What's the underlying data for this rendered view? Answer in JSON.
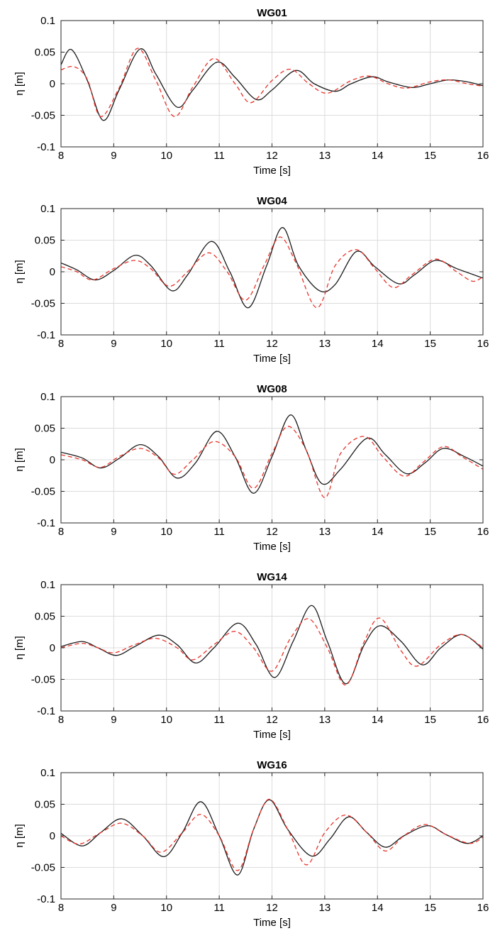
{
  "chart_data": [
    {
      "type": "line",
      "title": "WG01",
      "xlabel": "Time [s]",
      "ylabel": "η [m]",
      "xlim": [
        8,
        16
      ],
      "ylim": [
        -0.1,
        0.1
      ],
      "xticks": [
        "8",
        "9",
        "10",
        "11",
        "12",
        "13",
        "14",
        "15",
        "16"
      ],
      "yticks": [
        "-0.1",
        "-0.05",
        "0",
        "0.05",
        "0.1"
      ],
      "grid": true,
      "series": [
        {
          "style": "solid",
          "color": "#1a1a1a",
          "points": [
            [
              8.0,
              0.03
            ],
            [
              8.2,
              0.054
            ],
            [
              8.5,
              0.005
            ],
            [
              8.8,
              -0.058
            ],
            [
              9.1,
              -0.01
            ],
            [
              9.5,
              0.055
            ],
            [
              9.8,
              0.015
            ],
            [
              10.2,
              -0.037
            ],
            [
              10.5,
              -0.01
            ],
            [
              10.95,
              0.034
            ],
            [
              11.3,
              0.01
            ],
            [
              11.7,
              -0.025
            ],
            [
              12.0,
              -0.01
            ],
            [
              12.45,
              0.021
            ],
            [
              12.8,
              0.0
            ],
            [
              13.2,
              -0.012
            ],
            [
              13.5,
              0.0
            ],
            [
              13.9,
              0.011
            ],
            [
              14.2,
              0.003
            ],
            [
              14.65,
              -0.006
            ],
            [
              15.0,
              0.0
            ],
            [
              15.35,
              0.006
            ],
            [
              15.7,
              0.003
            ],
            [
              16.0,
              -0.003
            ]
          ]
        },
        {
          "style": "dashed",
          "color": "#e8332a",
          "points": [
            [
              8.0,
              0.022
            ],
            [
              8.25,
              0.027
            ],
            [
              8.5,
              0.007
            ],
            [
              8.75,
              -0.052
            ],
            [
              9.1,
              -0.007
            ],
            [
              9.45,
              0.056
            ],
            [
              9.8,
              0.005
            ],
            [
              10.15,
              -0.052
            ],
            [
              10.5,
              -0.005
            ],
            [
              10.9,
              0.04
            ],
            [
              11.3,
              0.0
            ],
            [
              11.6,
              -0.03
            ],
            [
              12.0,
              0.005
            ],
            [
              12.35,
              0.023
            ],
            [
              12.7,
              0.0
            ],
            [
              13.05,
              -0.015
            ],
            [
              13.5,
              0.005
            ],
            [
              13.85,
              0.012
            ],
            [
              14.2,
              0.0
            ],
            [
              14.55,
              -0.007
            ],
            [
              15.0,
              0.003
            ],
            [
              15.35,
              0.006
            ],
            [
              15.7,
              0.0
            ],
            [
              16.0,
              -0.004
            ]
          ]
        }
      ]
    },
    {
      "type": "line",
      "title": "WG04",
      "xlabel": "Time [s]",
      "ylabel": "η [m]",
      "xlim": [
        8,
        16
      ],
      "ylim": [
        -0.1,
        0.1
      ],
      "xticks": [
        "8",
        "9",
        "10",
        "11",
        "12",
        "13",
        "14",
        "15",
        "16"
      ],
      "yticks": [
        "-0.1",
        "-0.05",
        "0",
        "0.05",
        "0.1"
      ],
      "grid": true,
      "series": [
        {
          "style": "solid",
          "color": "#1a1a1a",
          "points": [
            [
              8.0,
              0.014
            ],
            [
              8.3,
              0.003
            ],
            [
              8.65,
              -0.013
            ],
            [
              9.0,
              0.002
            ],
            [
              9.4,
              0.026
            ],
            [
              9.7,
              0.01
            ],
            [
              10.1,
              -0.03
            ],
            [
              10.4,
              -0.005
            ],
            [
              10.85,
              0.048
            ],
            [
              11.2,
              0.0
            ],
            [
              11.55,
              -0.057
            ],
            [
              11.9,
              0.01
            ],
            [
              12.2,
              0.07
            ],
            [
              12.5,
              0.01
            ],
            [
              12.9,
              -0.03
            ],
            [
              13.2,
              -0.02
            ],
            [
              13.6,
              0.032
            ],
            [
              13.95,
              0.008
            ],
            [
              14.4,
              -0.019
            ],
            [
              14.7,
              -0.005
            ],
            [
              15.1,
              0.018
            ],
            [
              15.5,
              0.005
            ],
            [
              16.0,
              -0.01
            ]
          ]
        },
        {
          "style": "dashed",
          "color": "#e8332a",
          "points": [
            [
              8.0,
              0.008
            ],
            [
              8.3,
              0.0
            ],
            [
              8.6,
              -0.013
            ],
            [
              9.0,
              0.005
            ],
            [
              9.4,
              0.018
            ],
            [
              9.7,
              0.005
            ],
            [
              10.05,
              -0.023
            ],
            [
              10.4,
              0.0
            ],
            [
              10.8,
              0.03
            ],
            [
              11.15,
              0.0
            ],
            [
              11.5,
              -0.045
            ],
            [
              11.85,
              0.01
            ],
            [
              12.15,
              0.055
            ],
            [
              12.45,
              0.015
            ],
            [
              12.85,
              -0.057
            ],
            [
              13.2,
              0.01
            ],
            [
              13.6,
              0.035
            ],
            [
              13.95,
              0.005
            ],
            [
              14.3,
              -0.025
            ],
            [
              14.65,
              -0.005
            ],
            [
              15.1,
              0.02
            ],
            [
              15.5,
              0.0
            ],
            [
              15.8,
              -0.015
            ],
            [
              16.0,
              -0.008
            ]
          ]
        }
      ]
    },
    {
      "type": "line",
      "title": "WG08",
      "xlabel": "Time [s]",
      "ylabel": "η [m]",
      "xlim": [
        8,
        16
      ],
      "ylim": [
        -0.1,
        0.1
      ],
      "xticks": [
        "8",
        "9",
        "10",
        "11",
        "12",
        "13",
        "14",
        "15",
        "16"
      ],
      "yticks": [
        "-0.1",
        "-0.05",
        "0",
        "0.05",
        "0.1"
      ],
      "grid": true,
      "series": [
        {
          "style": "solid",
          "color": "#1a1a1a",
          "points": [
            [
              8.0,
              0.012
            ],
            [
              8.4,
              0.003
            ],
            [
              8.75,
              -0.013
            ],
            [
              9.1,
              0.002
            ],
            [
              9.5,
              0.024
            ],
            [
              9.85,
              0.005
            ],
            [
              10.2,
              -0.029
            ],
            [
              10.55,
              -0.005
            ],
            [
              10.95,
              0.045
            ],
            [
              11.3,
              0.005
            ],
            [
              11.65,
              -0.053
            ],
            [
              12.0,
              0.005
            ],
            [
              12.35,
              0.071
            ],
            [
              12.65,
              0.015
            ],
            [
              12.95,
              -0.038
            ],
            [
              13.3,
              -0.015
            ],
            [
              13.8,
              0.034
            ],
            [
              14.15,
              0.008
            ],
            [
              14.55,
              -0.022
            ],
            [
              14.9,
              -0.005
            ],
            [
              15.25,
              0.018
            ],
            [
              15.65,
              0.005
            ],
            [
              16.0,
              -0.01
            ]
          ]
        },
        {
          "style": "dashed",
          "color": "#e8332a",
          "points": [
            [
              8.0,
              0.008
            ],
            [
              8.4,
              0.0
            ],
            [
              8.75,
              -0.012
            ],
            [
              9.1,
              0.005
            ],
            [
              9.5,
              0.018
            ],
            [
              9.85,
              0.003
            ],
            [
              10.15,
              -0.023
            ],
            [
              10.5,
              0.0
            ],
            [
              10.9,
              0.029
            ],
            [
              11.3,
              0.005
            ],
            [
              11.65,
              -0.045
            ],
            [
              12.0,
              0.01
            ],
            [
              12.3,
              0.053
            ],
            [
              12.65,
              0.015
            ],
            [
              13.0,
              -0.06
            ],
            [
              13.3,
              0.01
            ],
            [
              13.75,
              0.037
            ],
            [
              14.1,
              0.005
            ],
            [
              14.5,
              -0.026
            ],
            [
              14.85,
              -0.005
            ],
            [
              15.25,
              0.021
            ],
            [
              15.6,
              0.005
            ],
            [
              16.0,
              -0.015
            ]
          ]
        }
      ]
    },
    {
      "type": "line",
      "title": "WG14",
      "xlabel": "Time [s]",
      "ylabel": "η [m]",
      "xlim": [
        8,
        16
      ],
      "ylim": [
        -0.1,
        0.1
      ],
      "xticks": [
        "8",
        "9",
        "10",
        "11",
        "12",
        "13",
        "14",
        "15",
        "16"
      ],
      "yticks": [
        "-0.1",
        "-0.05",
        "0",
        "0.05",
        "0.1"
      ],
      "grid": true,
      "series": [
        {
          "style": "solid",
          "color": "#1a1a1a",
          "points": [
            [
              8.0,
              0.002
            ],
            [
              8.4,
              0.01
            ],
            [
              8.7,
              0.0
            ],
            [
              9.05,
              -0.012
            ],
            [
              9.4,
              0.002
            ],
            [
              9.85,
              0.02
            ],
            [
              10.2,
              0.005
            ],
            [
              10.55,
              -0.024
            ],
            [
              10.9,
              0.0
            ],
            [
              11.35,
              0.039
            ],
            [
              11.7,
              0.005
            ],
            [
              12.05,
              -0.047
            ],
            [
              12.4,
              0.01
            ],
            [
              12.75,
              0.067
            ],
            [
              13.05,
              0.01
            ],
            [
              13.4,
              -0.057
            ],
            [
              13.75,
              0.005
            ],
            [
              14.05,
              0.035
            ],
            [
              14.45,
              0.01
            ],
            [
              14.85,
              -0.027
            ],
            [
              15.2,
              0.0
            ],
            [
              15.6,
              0.021
            ],
            [
              16.0,
              -0.002
            ]
          ]
        },
        {
          "style": "dashed",
          "color": "#e8332a",
          "points": [
            [
              8.0,
              0.0
            ],
            [
              8.4,
              0.007
            ],
            [
              8.7,
              0.0
            ],
            [
              9.0,
              -0.008
            ],
            [
              9.4,
              0.005
            ],
            [
              9.8,
              0.015
            ],
            [
              10.2,
              0.0
            ],
            [
              10.5,
              -0.019
            ],
            [
              10.9,
              0.005
            ],
            [
              11.3,
              0.026
            ],
            [
              11.65,
              0.0
            ],
            [
              12.0,
              -0.037
            ],
            [
              12.35,
              0.015
            ],
            [
              12.7,
              0.046
            ],
            [
              13.05,
              0.0
            ],
            [
              13.4,
              -0.059
            ],
            [
              13.75,
              0.01
            ],
            [
              14.05,
              0.047
            ],
            [
              14.45,
              -0.005
            ],
            [
              14.75,
              -0.029
            ],
            [
              15.2,
              0.005
            ],
            [
              15.6,
              0.021
            ],
            [
              16.0,
              0.0
            ]
          ]
        }
      ]
    },
    {
      "type": "line",
      "title": "WG16",
      "xlabel": "Time [s]",
      "ylabel": "η [m]",
      "xlim": [
        8,
        16
      ],
      "ylim": [
        -0.1,
        0.1
      ],
      "xticks": [
        "8",
        "9",
        "10",
        "11",
        "12",
        "13",
        "14",
        "15",
        "16"
      ],
      "yticks": [
        "-0.1",
        "-0.05",
        "0",
        "0.05",
        "0.1"
      ],
      "grid": true,
      "series": [
        {
          "style": "solid",
          "color": "#1a1a1a",
          "points": [
            [
              8.0,
              0.004
            ],
            [
              8.4,
              -0.016
            ],
            [
              8.75,
              0.005
            ],
            [
              9.15,
              0.027
            ],
            [
              9.55,
              0.0
            ],
            [
              9.95,
              -0.033
            ],
            [
              10.3,
              0.005
            ],
            [
              10.65,
              0.054
            ],
            [
              11.0,
              0.0
            ],
            [
              11.35,
              -0.062
            ],
            [
              11.65,
              0.01
            ],
            [
              11.95,
              0.057
            ],
            [
              12.3,
              0.01
            ],
            [
              12.75,
              -0.032
            ],
            [
              13.1,
              -0.005
            ],
            [
              13.45,
              0.03
            ],
            [
              13.8,
              0.005
            ],
            [
              14.15,
              -0.018
            ],
            [
              14.5,
              0.0
            ],
            [
              14.95,
              0.016
            ],
            [
              15.3,
              0.002
            ],
            [
              15.7,
              -0.012
            ],
            [
              16.0,
              0.0
            ]
          ]
        },
        {
          "style": "dashed",
          "color": "#e8332a",
          "points": [
            [
              8.0,
              0.0
            ],
            [
              8.35,
              -0.013
            ],
            [
              8.75,
              0.005
            ],
            [
              9.15,
              0.02
            ],
            [
              9.55,
              0.0
            ],
            [
              9.9,
              -0.026
            ],
            [
              10.3,
              0.005
            ],
            [
              10.65,
              0.034
            ],
            [
              11.0,
              0.0
            ],
            [
              11.35,
              -0.055
            ],
            [
              11.65,
              0.01
            ],
            [
              11.95,
              0.058
            ],
            [
              12.3,
              0.01
            ],
            [
              12.65,
              -0.046
            ],
            [
              13.0,
              0.005
            ],
            [
              13.4,
              0.033
            ],
            [
              13.8,
              0.005
            ],
            [
              14.15,
              -0.024
            ],
            [
              14.5,
              0.0
            ],
            [
              14.9,
              0.018
            ],
            [
              15.3,
              0.002
            ],
            [
              15.75,
              -0.012
            ],
            [
              16.0,
              -0.002
            ]
          ]
        }
      ]
    }
  ]
}
